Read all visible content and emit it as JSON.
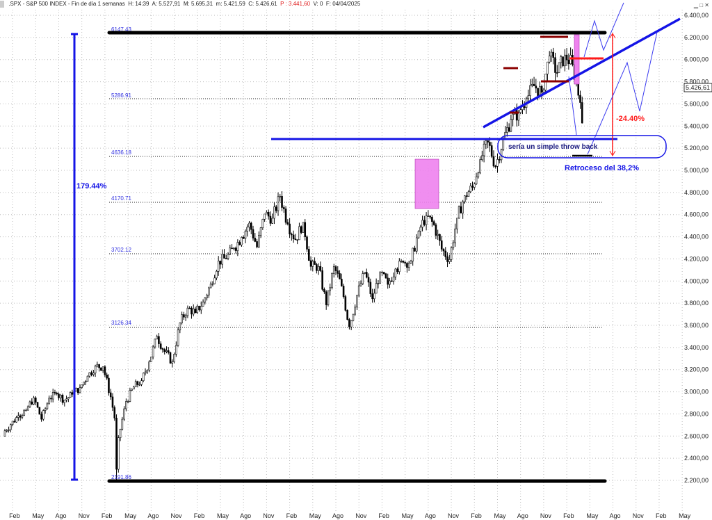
{
  "header": {
    "symbol": ".SPX - S&P 500 INDEX - Fin de día 1 semanas",
    "h": "H: 14:39",
    "a": "A: 5.527,91",
    "m": "M: 5.695,31",
    "min": "m: 5.421,59",
    "c": "C: 5.426,61",
    "p": "P : 3.441,60",
    "v": "V: 0",
    "f": "F: 04/04/2025"
  },
  "window_controls": [
    "minimize-icon",
    "maximize-icon",
    "close-icon"
  ],
  "colors": {
    "candle": "#000000",
    "trend": "#1414e6",
    "annotation_red": "#ff1a1a",
    "highlight": "#ee82ee",
    "fib_text": "#3030e0"
  },
  "chart_data": {
    "type": "candlestick",
    "title": ".SPX - S&P 500 INDEX",
    "frequency": "weekly",
    "y_ticks": [
      "2.200,00",
      "2.400,00",
      "2.600,00",
      "2.800,00",
      "3.000,00",
      "3.200,00",
      "3.400,00",
      "3.600,00",
      "3.800,00",
      "4.000,00",
      "4.200,00",
      "4.400,00",
      "4.600,00",
      "4.800,00",
      "5.000,00",
      "5.200,00",
      "5.400,00",
      "5.600,00",
      "5.800,00",
      "6.000,00",
      "6.200,00",
      "6.400,00"
    ],
    "ylim": [
      2200,
      6400
    ],
    "x_ticks": [
      "Feb",
      "May",
      "Ago",
      "Nov",
      "Feb",
      "May",
      "Ago",
      "Nov",
      "Feb",
      "May",
      "Ago",
      "Nov",
      "Feb",
      "May",
      "Ago",
      "Nov",
      "Feb",
      "May",
      "Ago",
      "Nov",
      "Feb",
      "May",
      "Ago",
      "Nov",
      "Feb",
      "May",
      "Ago",
      "Nov",
      "Feb",
      "May"
    ],
    "start_month": "2019-01",
    "monthly_close": [
      2704,
      2784,
      2834,
      2946,
      2752,
      2942,
      2980,
      2926,
      2977,
      3038,
      3141,
      3231,
      3226,
      2954,
      2585,
      2912,
      3044,
      3100,
      3271,
      3500,
      3363,
      3270,
      3622,
      3756,
      3714,
      3811,
      3973,
      4181,
      4204,
      4298,
      4395,
      4523,
      4308,
      4605,
      4567,
      4766,
      4516,
      4374,
      4530,
      4132,
      4132,
      3785,
      4130,
      3955,
      3586,
      3872,
      4080,
      3840,
      4077,
      3970,
      4109,
      4169,
      4180,
      4450,
      4589,
      4508,
      4288,
      4194,
      4568,
      4770,
      4846,
      5096,
      5254,
      5036,
      5278,
      5460,
      5522,
      5648,
      5762,
      5705,
      6032,
      5882,
      6041,
      5955,
      5612,
      5427
    ],
    "last_price_label": "5.426,61",
    "grid": true,
    "fib_levels": [
      "6147.43",
      "5286.91",
      "4636.18",
      "4170.71",
      "3702.12",
      "3126.34",
      "2191.86"
    ],
    "annotations": {
      "rise_pct": "179.44%",
      "drop_pct": "-24.40%",
      "box_text": "sería un simple throw back",
      "retracement": "Retroceso del 38,2%"
    }
  }
}
